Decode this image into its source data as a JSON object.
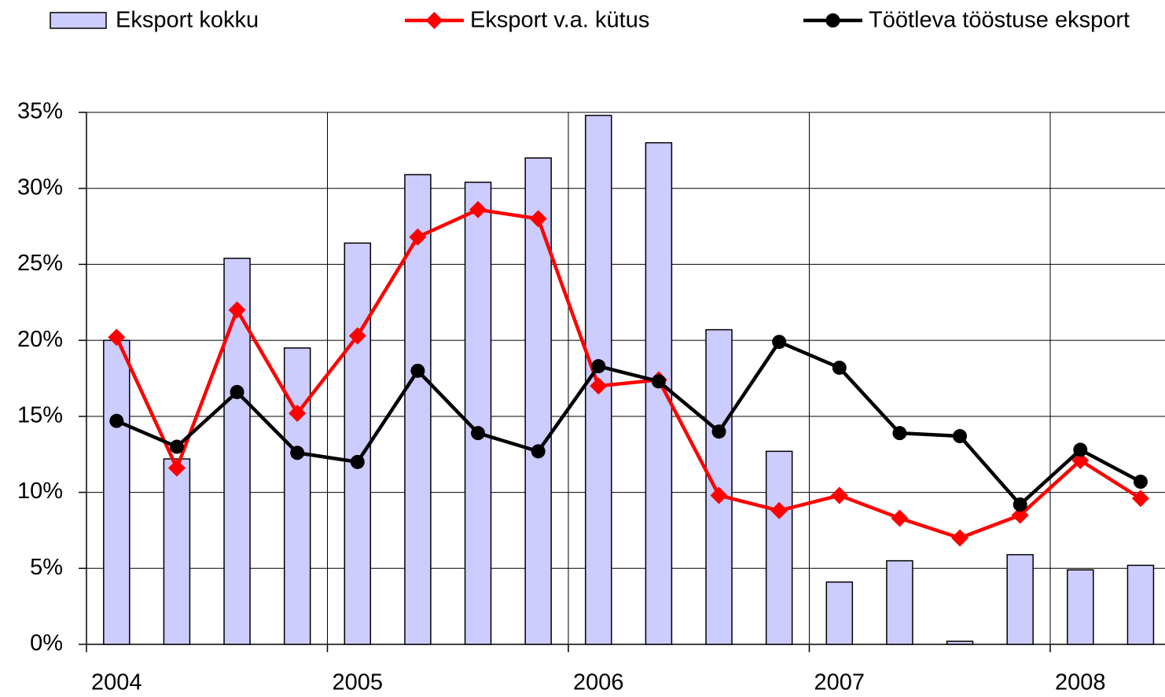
{
  "chart_data": {
    "type": "bar_line",
    "categories": [
      "2004",
      null,
      null,
      null,
      "2005",
      null,
      null,
      null,
      "2006",
      null,
      null,
      null,
      "2007",
      null,
      null,
      null,
      "2008",
      null
    ],
    "series": [
      {
        "name": "Eksport kokku",
        "type": "bar",
        "color": "#ccccff",
        "values": [
          20.0,
          12.2,
          25.4,
          19.5,
          26.4,
          30.9,
          30.4,
          32.0,
          34.8,
          33.0,
          20.7,
          12.7,
          4.1,
          5.5,
          0.2,
          5.9,
          4.9,
          5.2
        ]
      },
      {
        "name": "Eksport v.a. kütus",
        "type": "line",
        "marker": "diamond",
        "color": "#ff0000",
        "values": [
          20.2,
          11.6,
          22.0,
          15.2,
          20.3,
          26.8,
          28.6,
          28.0,
          17.0,
          17.4,
          9.8,
          8.8,
          9.8,
          8.3,
          7.0,
          8.5,
          12.1,
          9.6
        ]
      },
      {
        "name": "Töötleva tööstuse eksport",
        "type": "line",
        "marker": "circle",
        "color": "#000000",
        "values": [
          14.7,
          13.0,
          16.6,
          12.6,
          12.0,
          18.0,
          13.9,
          12.7,
          18.3,
          17.3,
          14.0,
          19.9,
          18.2,
          13.9,
          13.7,
          9.2,
          12.8,
          10.7
        ]
      }
    ],
    "ylim": [
      0,
      35
    ],
    "yticks": [
      {
        "value": 0,
        "label": "0%"
      },
      {
        "value": 5,
        "label": "5%"
      },
      {
        "value": 10,
        "label": "10%"
      },
      {
        "value": 15,
        "label": "15%"
      },
      {
        "value": 20,
        "label": "20%"
      },
      {
        "value": 25,
        "label": "25%"
      },
      {
        "value": 30,
        "label": "30%"
      },
      {
        "value": 35,
        "label": "35%"
      }
    ],
    "grid": true,
    "legend": "top"
  }
}
